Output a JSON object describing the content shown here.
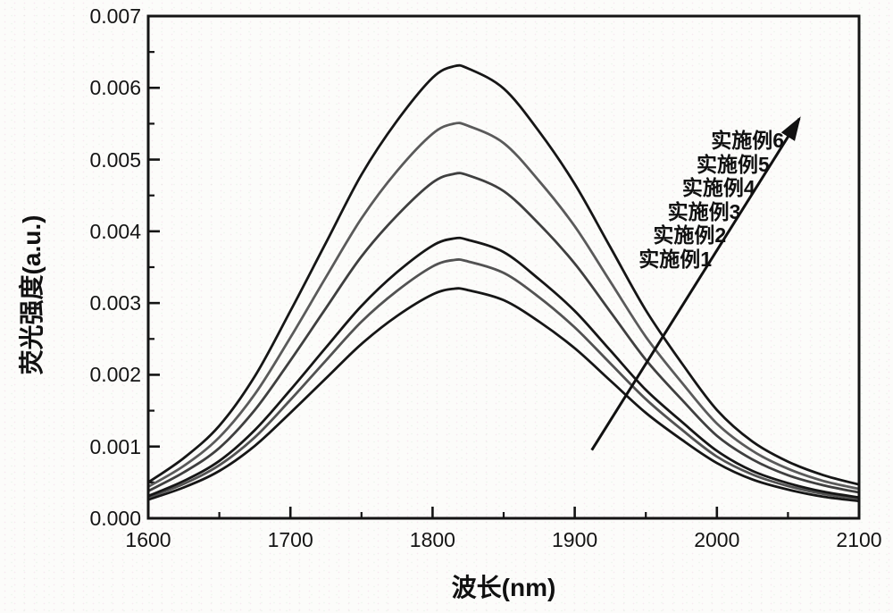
{
  "chart_data": {
    "type": "line",
    "title": "",
    "xlabel": "波长(nm)",
    "ylabel": "荧光强度(a.u.)",
    "xlim": [
      1600,
      2100
    ],
    "ylim": [
      0,
      0.007
    ],
    "grid": false,
    "x_tick_labels": [
      "1600",
      "1700",
      "1800",
      "1900",
      "2000",
      "2100"
    ],
    "x_major_ticks": [
      1600,
      1700,
      1800,
      1900,
      2000,
      2100
    ],
    "x_minor_ticks": [
      1650,
      1750,
      1850,
      1950,
      2050
    ],
    "y_tick_labels": [
      "0.000",
      "0.001",
      "0.002",
      "0.003",
      "0.004",
      "0.005",
      "0.006",
      "0.007"
    ],
    "y_major_ticks": [
      0,
      0.001,
      0.002,
      0.003,
      0.004,
      0.005,
      0.006,
      0.007
    ],
    "y_minor_ticks": [
      0.0005,
      0.0015,
      0.0025,
      0.0035,
      0.0045,
      0.0055,
      0.0065
    ],
    "peak_wavelength_nm": 1815,
    "x": [
      1600,
      1625,
      1650,
      1675,
      1700,
      1725,
      1750,
      1775,
      1800,
      1815,
      1825,
      1850,
      1875,
      1900,
      1925,
      1950,
      1975,
      2000,
      2025,
      2050,
      2075,
      2100
    ],
    "series": [
      {
        "name": "实施例1",
        "color": "#161616",
        "peak": 0.0032,
        "values": [
          0.00026,
          0.00043,
          0.00066,
          0.00101,
          0.00147,
          0.00195,
          0.00243,
          0.00282,
          0.00312,
          0.0032,
          0.00318,
          0.00304,
          0.00274,
          0.00237,
          0.00192,
          0.00147,
          0.0011,
          0.00077,
          0.00054,
          0.0004,
          0.0003,
          0.00024
        ]
      },
      {
        "name": "实施例2",
        "color": "#525252",
        "peak": 0.0036,
        "values": [
          0.00029,
          0.00048,
          0.00074,
          0.00113,
          0.00165,
          0.0022,
          0.00274,
          0.00317,
          0.00351,
          0.0036,
          0.00358,
          0.00342,
          0.00308,
          0.00266,
          0.00216,
          0.00166,
          0.00124,
          0.00086,
          0.00061,
          0.00045,
          0.00034,
          0.00027
        ]
      },
      {
        "name": "实施例3",
        "color": "#161616",
        "peak": 0.0039,
        "values": [
          0.00031,
          0.00052,
          0.0008,
          0.00123,
          0.00179,
          0.00238,
          0.00296,
          0.00343,
          0.0038,
          0.0039,
          0.00388,
          0.00371,
          0.00333,
          0.00289,
          0.00234,
          0.00179,
          0.00135,
          0.00094,
          0.00066,
          0.00049,
          0.00037,
          0.00029
        ]
      },
      {
        "name": "实施例4",
        "color": "#3f3f3f",
        "peak": 0.0048,
        "values": [
          0.00038,
          0.00064,
          0.00098,
          0.00151,
          0.0022,
          0.00293,
          0.00365,
          0.00422,
          0.00468,
          0.0048,
          0.00478,
          0.00456,
          0.0041,
          0.00355,
          0.00288,
          0.00221,
          0.00166,
          0.00115,
          0.00082,
          0.0006,
          0.00046,
          0.00036
        ]
      },
      {
        "name": "实施例5",
        "color": "#5a5a5a",
        "peak": 0.0055,
        "values": [
          0.00044,
          0.00073,
          0.00113,
          0.00173,
          0.00252,
          0.00336,
          0.00418,
          0.00484,
          0.00536,
          0.0055,
          0.00547,
          0.00523,
          0.0047,
          0.00407,
          0.0033,
          0.00253,
          0.0019,
          0.00132,
          0.00094,
          0.00069,
          0.00052,
          0.00041
        ]
      },
      {
        "name": "实施例6",
        "color": "#161616",
        "peak": 0.0063,
        "values": [
          0.0005,
          0.00084,
          0.00129,
          0.00198,
          0.00289,
          0.00384,
          0.00479,
          0.00554,
          0.00614,
          0.0063,
          0.00627,
          0.00599,
          0.00539,
          0.00466,
          0.00378,
          0.0029,
          0.00217,
          0.00151,
          0.00107,
          0.00079,
          0.0006,
          0.00047
        ]
      }
    ],
    "annotation": {
      "labels": [
        "实施例6",
        "实施例5",
        "实施例4",
        "实施例3",
        "实施例2",
        "实施例1"
      ],
      "arrow": {
        "x1": 1912,
        "y1": 0.00095,
        "x2": 2058,
        "y2": 0.00557,
        "color": "#111111"
      }
    },
    "frame_color": "#141414"
  }
}
